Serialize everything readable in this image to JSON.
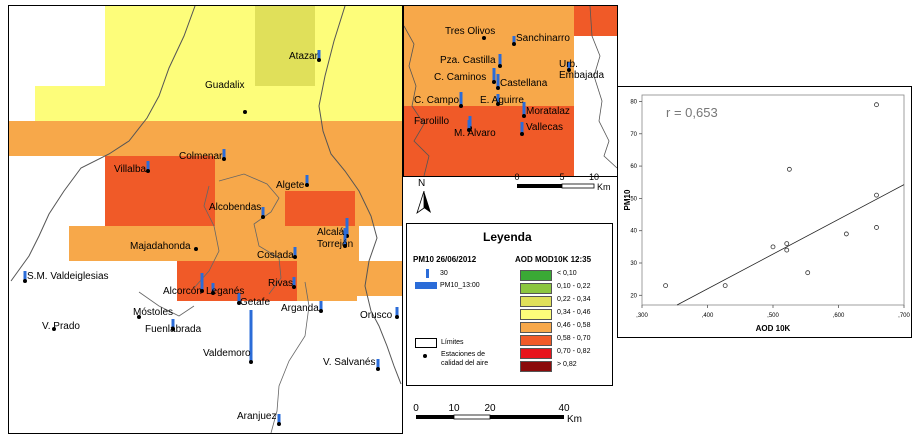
{
  "colors": {
    "lt010": "#3aa935",
    "c010_022": "#8cc63f",
    "c022_034": "#e0e05a",
    "c034_046": "#fdfd7a",
    "c046_058": "#f7a84a",
    "c058_070": "#f05a28",
    "c070_082": "#e8141b",
    "gt082": "#8b0a0a",
    "pm_bar": "#2b6cd8"
  },
  "main_map": {
    "stations": [
      {
        "name": "Atazar",
        "pm": "short"
      },
      {
        "name": "Guadalix",
        "pm": "none"
      },
      {
        "name": "Colmenar",
        "pm": "short"
      },
      {
        "name": "Villalba",
        "pm": "short"
      },
      {
        "name": "Algete",
        "pm": "short"
      },
      {
        "name": "Alcobendas",
        "pm": "short"
      },
      {
        "name": "Alcalá",
        "pm": "medium"
      },
      {
        "name": "Torrejón",
        "pm": "medium"
      },
      {
        "name": "Majadahonda",
        "pm": "none"
      },
      {
        "name": "Coslada",
        "pm": "short"
      },
      {
        "name": "S.M. Valdeiglesias",
        "pm": "short"
      },
      {
        "name": "Rivas",
        "pm": "short"
      },
      {
        "name": "Alcorcón",
        "pm": "medium"
      },
      {
        "name": "Leganés",
        "pm": "short"
      },
      {
        "name": "Getafe",
        "pm": "short"
      },
      {
        "name": "Móstoles",
        "pm": "none"
      },
      {
        "name": "Arganda",
        "pm": "short"
      },
      {
        "name": "Orusco",
        "pm": "short"
      },
      {
        "name": "V. Prado",
        "pm": "none"
      },
      {
        "name": "Fuenlabrada",
        "pm": "short"
      },
      {
        "name": "Valdemoro",
        "pm": "long"
      },
      {
        "name": "V. Salvanés",
        "pm": "short"
      },
      {
        "name": "Aranjuez",
        "pm": "short"
      }
    ],
    "scale": {
      "ticks": [
        "0",
        "10",
        "20",
        "40"
      ],
      "unit": "Km"
    }
  },
  "inset_map": {
    "stations": [
      {
        "name": "Tres Olivos"
      },
      {
        "name": "Sanchinarro"
      },
      {
        "name": "Pza. Castilla"
      },
      {
        "name": "Urb. Embajada"
      },
      {
        "name": "C. Caminos"
      },
      {
        "name": "Castellana"
      },
      {
        "name": "C. Campo"
      },
      {
        "name": "E. Aguirre"
      },
      {
        "name": "Moratalaz"
      },
      {
        "name": "Farolillo"
      },
      {
        "name": "Vallecas"
      },
      {
        "name": "M. Alvaro"
      }
    ],
    "scale": {
      "ticks": [
        "0",
        "5",
        "10"
      ],
      "unit": "Km"
    }
  },
  "north_label": "N",
  "legend": {
    "title": "Leyenda",
    "pm_title": "PM10 26/06/2012",
    "pm_entries": [
      "30",
      "PM10_13:00"
    ],
    "aod_title": "AOD MOD10K 12:35",
    "aod_classes": [
      "< 0,10",
      "0,10 - 0,22",
      "0,22 - 0,34",
      "0,34 - 0,46",
      "0,46 - 0,58",
      "0,58 - 0,70",
      "0,70 - 0,82",
      "> 0,82"
    ],
    "limits_label": "Límites",
    "stations_label_1": "Estaciones de",
    "stations_label_2": "calidad del aire"
  },
  "scatter": {
    "annotation": "r = 0,653",
    "chart_data": {
      "type": "scatter",
      "xlabel": "AOD 10K",
      "ylabel": "PM10",
      "xlim": [
        0.3,
        0.7
      ],
      "ylim": [
        17,
        82
      ],
      "xticks": [
        ",300",
        ",400",
        ",500",
        ",600",
        ",700"
      ],
      "yticks": [
        "20",
        "30",
        "40",
        "50",
        "60",
        "70",
        "80"
      ],
      "x": [
        0.336,
        0.427,
        0.5,
        0.521,
        0.521,
        0.525,
        0.553,
        0.612,
        0.658,
        0.658,
        0.658
      ],
      "y": [
        23,
        23,
        35,
        36,
        34,
        59,
        27,
        39,
        79,
        51,
        41
      ],
      "fit": {
        "slope": 107.5,
        "intercept": -21.0
      }
    }
  }
}
